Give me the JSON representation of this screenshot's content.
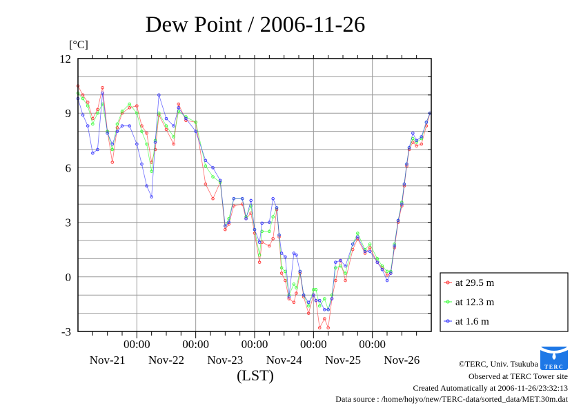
{
  "chart_data": {
    "type": "line",
    "title": "Dew Point / 2006-11-26",
    "ylabel": "[°C]",
    "xlabel": "(LST)",
    "ylim": [
      -3,
      12
    ],
    "yticks": [
      -3,
      0,
      3,
      6,
      9,
      12
    ],
    "ytick_labels": [
      "-3",
      "0",
      "3",
      "6",
      "9",
      "12"
    ],
    "x_unit": "hours since Nov-21 00:00",
    "xlim": [
      0,
      144
    ],
    "xtick_time_label": "00:00",
    "xtick_time_positions": [
      24,
      48,
      72,
      96,
      120
    ],
    "day_labels": [
      "Nov-21",
      "Nov-22",
      "Nov-23",
      "Nov-24",
      "Nov-25",
      "Nov-26"
    ],
    "grid": true,
    "legend_position": "right-bottom",
    "x": [
      0,
      2,
      4,
      6,
      8,
      10,
      12,
      14,
      16,
      18,
      21,
      24,
      26,
      28,
      30,
      31.5,
      33,
      36,
      39,
      41,
      44,
      48,
      52,
      55,
      58,
      60,
      61.5,
      63.5,
      67,
      68.5,
      70.5,
      72,
      74,
      75,
      78,
      79.5,
      81,
      82,
      83,
      84.5,
      86,
      88,
      89,
      90.5,
      92,
      94,
      96,
      97,
      98.5,
      100.5,
      102,
      103.5,
      105,
      107,
      109,
      112,
      114,
      117,
      119,
      122,
      124,
      126,
      127.5,
      129,
      130.5,
      132,
      133,
      134,
      135,
      136.5,
      138,
      140,
      142,
      143.5
    ],
    "series": [
      {
        "name": "at 29.5 m",
        "color": "#ff3030",
        "values": [
          10.5,
          10.0,
          9.6,
          8.7,
          9.2,
          10.4,
          8.0,
          6.3,
          8.2,
          9.0,
          9.3,
          9.4,
          8.3,
          7.9,
          6.3,
          7.0,
          8.9,
          8.1,
          7.3,
          9.5,
          8.6,
          8.5,
          5.1,
          4.3,
          5.2,
          2.6,
          2.9,
          3.9,
          4.0,
          3.2,
          3.5,
          2.4,
          0.8,
          1.9,
          1.7,
          2.1,
          3.7,
          2.2,
          0.2,
          -0.2,
          -1.2,
          -1.4,
          -0.9,
          0.2,
          -1.1,
          -2.0,
          -1.0,
          -1.3,
          -2.8,
          -2.3,
          -2.8,
          -1.2,
          -0.2,
          0.9,
          -0.2,
          1.5,
          2.1,
          1.3,
          1.6,
          0.8,
          0.5,
          0.1,
          0.2,
          1.6,
          3.0,
          3.9,
          5.0,
          6.1,
          7.0,
          7.4,
          7.2,
          7.3,
          8.3,
          9.0
        ]
      },
      {
        "name": "at 12.3 m",
        "color": "#30ff30",
        "values": [
          10.1,
          9.8,
          9.4,
          8.4,
          9.0,
          9.5,
          8.0,
          7.0,
          8.4,
          9.1,
          9.5,
          9.0,
          8.0,
          7.3,
          5.8,
          7.5,
          9.0,
          8.3,
          7.7,
          9.1,
          8.8,
          8.5,
          6.1,
          5.5,
          5.2,
          2.8,
          3.2,
          4.3,
          4.3,
          3.3,
          3.9,
          2.6,
          1.2,
          2.5,
          2.5,
          3.3,
          3.8,
          2.3,
          0.5,
          0.3,
          -1.0,
          -0.4,
          -0.6,
          0.3,
          -1.0,
          -1.6,
          -0.7,
          -0.7,
          -1.6,
          -1.2,
          -1.8,
          -1.0,
          0.5,
          0.6,
          0.2,
          1.8,
          2.4,
          1.5,
          1.8,
          1.0,
          0.6,
          0.3,
          0.3,
          1.8,
          3.1,
          4.1,
          5.1,
          6.2,
          7.1,
          7.6,
          7.4,
          7.6,
          8.5,
          9.0
        ]
      },
      {
        "name": "at 1.6 m",
        "color": "#3030ff",
        "values": [
          9.8,
          8.9,
          8.3,
          6.8,
          7.0,
          10.1,
          7.9,
          7.3,
          8.0,
          8.3,
          8.3,
          7.3,
          6.2,
          5.0,
          4.4,
          7.4,
          10.0,
          8.7,
          8.3,
          9.3,
          8.7,
          8.0,
          6.4,
          6.0,
          5.3,
          2.8,
          3.0,
          4.3,
          4.3,
          3.2,
          4.2,
          2.6,
          1.9,
          2.95,
          3.0,
          4.3,
          3.8,
          2.3,
          1.3,
          1.1,
          -1.1,
          1.3,
          1.2,
          0.3,
          -1.0,
          -1.4,
          -1.0,
          -1.3,
          -1.3,
          -1.8,
          -1.8,
          -1.2,
          0.8,
          0.9,
          0.6,
          1.8,
          2.2,
          1.4,
          1.4,
          0.8,
          0.4,
          -0.2,
          0.2,
          1.7,
          3.1,
          4.0,
          5.1,
          6.2,
          7.1,
          7.9,
          7.5,
          7.7,
          8.5,
          9.0
        ]
      }
    ]
  },
  "footer": {
    "copyright": "©TERC, Univ. Tsukuba",
    "observed": "Observed at TERC Tower site",
    "created": "Created Automatically at 2006-11-26/23:32:13",
    "source": "Data source : /home/hojyo/new/TERC-data/sorted_data/MET.30m.dat",
    "logo_text": "TERC"
  }
}
